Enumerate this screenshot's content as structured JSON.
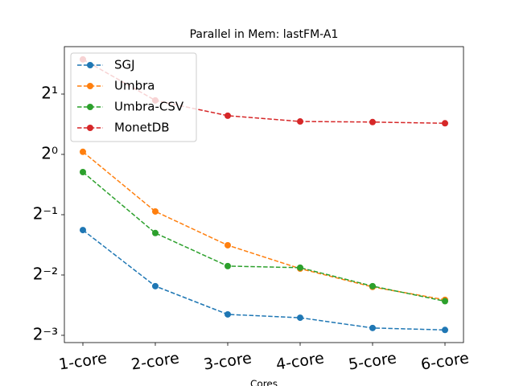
{
  "chart_data": {
    "type": "line",
    "title": "Parallel in Mem: lastFM-A1",
    "x_label": "Cores",
    "categories": [
      "1-core",
      "2-core",
      "3-core",
      "4-core",
      "5-core",
      "6-core"
    ],
    "yscale": "log",
    "log_base": 2,
    "ylim": [
      0.115,
      3.45
    ],
    "yticks": [
      {
        "value": 0.125,
        "label": "2⁻³"
      },
      {
        "value": 0.25,
        "label": "2⁻²"
      },
      {
        "value": 0.5,
        "label": "2⁻¹"
      },
      {
        "value": 1,
        "label": "2⁰"
      },
      {
        "value": 2,
        "label": "2¹"
      }
    ],
    "legend": "upper left",
    "series": [
      {
        "name": "SGJ",
        "color": "#1f77b4",
        "values": [
          0.419,
          0.22,
          0.159,
          0.153,
          0.136,
          0.133
        ]
      },
      {
        "name": "Umbra",
        "color": "#ff7f0e",
        "values": [
          1.03,
          0.519,
          0.352,
          0.269,
          0.218,
          0.188
        ]
      },
      {
        "name": "Umbra-CSV",
        "color": "#2ca02c",
        "values": [
          0.816,
          0.405,
          0.277,
          0.272,
          0.22,
          0.185
        ]
      },
      {
        "name": "MonetDB",
        "color": "#d62728",
        "values": [
          2.98,
          1.86,
          1.56,
          1.46,
          1.45,
          1.43
        ]
      }
    ]
  }
}
